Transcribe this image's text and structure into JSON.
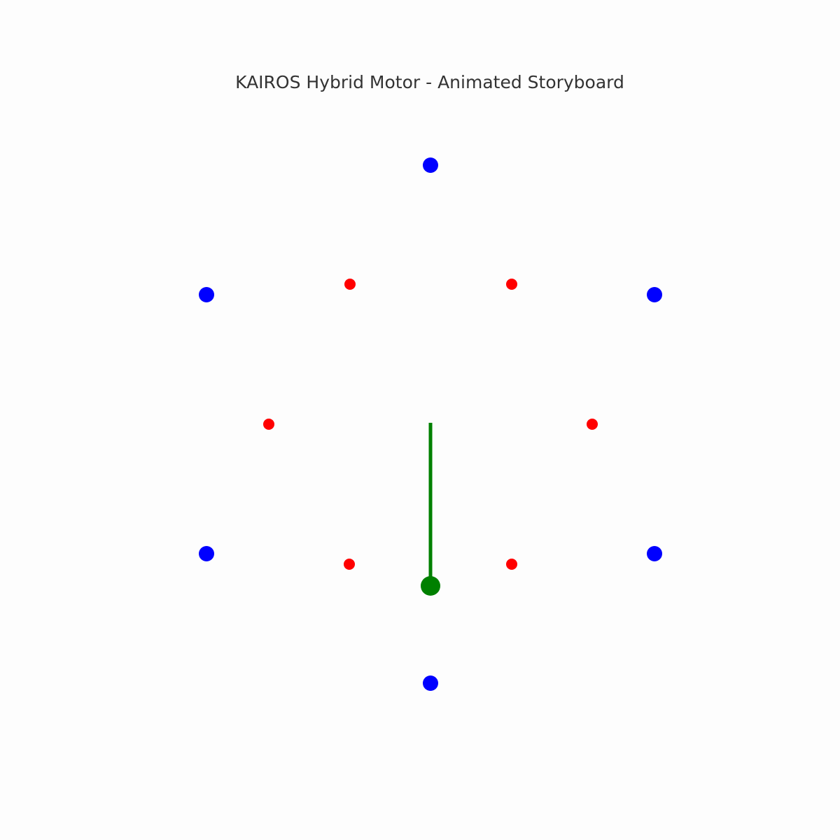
{
  "title": "KAIROS Hybrid Motor - Animated Storyboard",
  "colors": {
    "background": "#fdfdfd",
    "title": "#333333",
    "outer_nodes": "#0000ff",
    "inner_nodes": "#ff0000",
    "rotor": "#008000"
  },
  "rotor": {
    "angle_deg": 180
  }
}
